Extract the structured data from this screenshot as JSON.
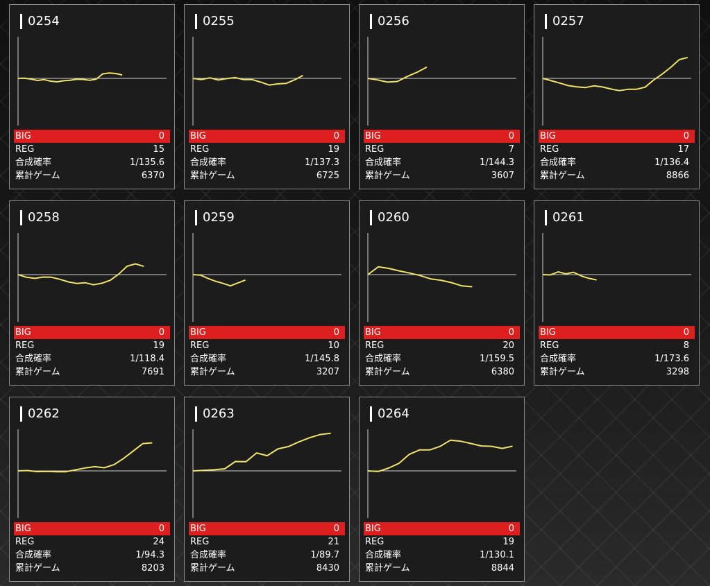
{
  "labels": {
    "big": "BIG",
    "reg": "REG",
    "rate": "合成確率",
    "games": "累計ゲーム"
  },
  "colors": {
    "line": "#f0e26b",
    "baseline": "#cfcfcf",
    "axis": "#cfcfcf",
    "big_bar": "#de1f1f",
    "card": "#1c1c1c"
  },
  "machines": [
    {
      "id": "0254",
      "big": "0",
      "reg": "15",
      "rate": "1/135.6",
      "games": "6370",
      "chart_data": {
        "type": "line",
        "values": [
          0,
          0.2,
          -0.8,
          -2.2,
          -1.3,
          -3.0,
          -3.7,
          -2.5,
          -2.0,
          -0.9,
          -1.1,
          -2.1,
          -0.8,
          4.8,
          5.8,
          5.2,
          3.6
        ]
      }
    },
    {
      "id": "0255",
      "big": "0",
      "reg": "19",
      "rate": "1/137.3",
      "games": "6725",
      "chart_data": {
        "type": "line",
        "values": [
          0,
          -1.3,
          0.6,
          -1.8,
          -0.2,
          0.8,
          -1.3,
          -1.3,
          -4.0,
          -7.1,
          -5.9,
          -5.4,
          -1.6,
          3.2
        ]
      }
    },
    {
      "id": "0256",
      "big": "0",
      "reg": "7",
      "rate": "1/144.3",
      "games": "3607",
      "chart_data": {
        "type": "line",
        "values": [
          0,
          -1.7,
          -4.0,
          -3.3,
          2.0,
          6.5,
          12.0
        ]
      }
    },
    {
      "id": "0257",
      "big": "0",
      "reg": "17",
      "rate": "1/136.4",
      "games": "8866",
      "chart_data": {
        "type": "line",
        "values": [
          0,
          -2.5,
          -5.0,
          -7.8,
          -9.0,
          -9.8,
          -8.0,
          -9.2,
          -11.4,
          -13.1,
          -11.6,
          -11.6,
          -9.4,
          -1.8,
          4.6,
          11.8,
          20.0,
          22.4
        ]
      }
    },
    {
      "id": "0258",
      "big": "0",
      "reg": "19",
      "rate": "1/118.4",
      "games": "7691",
      "chart_data": {
        "type": "line",
        "values": [
          0,
          -2.8,
          -4.0,
          -2.6,
          -2.8,
          -5.0,
          -7.8,
          -9.4,
          -8.7,
          -10.8,
          -9.2,
          -6.0,
          0.5,
          9.0,
          11.5,
          8.8
        ]
      }
    },
    {
      "id": "0259",
      "big": "0",
      "reg": "10",
      "rate": "1/145.8",
      "games": "3207",
      "chart_data": {
        "type": "line",
        "values": [
          0,
          -0.5,
          -4.0,
          -7.0,
          -9.3,
          -12.0,
          -8.8,
          -5.8
        ]
      }
    },
    {
      "id": "0260",
      "big": "0",
      "reg": "20",
      "rate": "1/159.5",
      "games": "6380",
      "chart_data": {
        "type": "line",
        "values": [
          0,
          8.3,
          6.7,
          4.0,
          1.7,
          -1.0,
          -4.5,
          -6.0,
          -8.5,
          -12.0,
          -13.0
        ]
      }
    },
    {
      "id": "0261",
      "big": "0",
      "reg": "8",
      "rate": "1/173.6",
      "games": "3298",
      "chart_data": {
        "type": "line",
        "values": [
          0,
          -0.3,
          3.0,
          0.8,
          2.5,
          -1.4,
          -4.0,
          -5.6
        ]
      }
    },
    {
      "id": "0262",
      "big": "0",
      "reg": "24",
      "rate": "1/94.3",
      "games": "8203",
      "chart_data": {
        "type": "line",
        "values": [
          0,
          0.4,
          -0.8,
          -0.5,
          -0.9,
          -0.9,
          1.1,
          3.1,
          4.5,
          3.3,
          6.6,
          13.2,
          21.0,
          29.0,
          30.0
        ]
      }
    },
    {
      "id": "0263",
      "big": "0",
      "reg": "21",
      "rate": "1/89.7",
      "games": "8430",
      "chart_data": {
        "type": "line",
        "values": [
          0,
          0.6,
          1.2,
          2.2,
          10.0,
          9.8,
          19.2,
          16.2,
          23.4,
          26.0,
          31.0,
          35.4,
          38.8,
          40.2
        ]
      }
    },
    {
      "id": "0264",
      "big": "0",
      "reg": "19",
      "rate": "1/130.1",
      "games": "8844",
      "chart_data": {
        "type": "line",
        "values": [
          0,
          -0.7,
          3.0,
          8.0,
          17.6,
          22.4,
          22.4,
          26.2,
          32.8,
          31.6,
          29.2,
          26.6,
          26.2,
          24.0,
          26.4
        ]
      }
    }
  ]
}
